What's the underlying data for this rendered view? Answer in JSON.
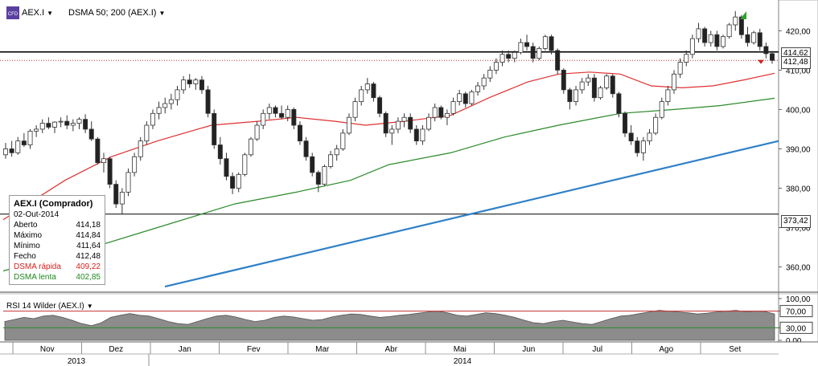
{
  "toolbar": {
    "symbol": "AEX.I",
    "indicator": "DSMA 50; 200 (AEX.I)"
  },
  "rsi_header": "RSI 14 Wilder (AEX.I)",
  "price_box": {
    "title": "AEX.I (Comprador)",
    "date": "02-Out-2014",
    "rows": [
      {
        "label": "Aberto",
        "value": "414,18"
      },
      {
        "label": "Máximo",
        "value": "414,84"
      },
      {
        "label": "Mínimo",
        "value": "411,64"
      },
      {
        "label": "Fecho",
        "value": "412,48"
      },
      {
        "label": "DSMA rápida",
        "value": "409,22"
      },
      {
        "label": "DSMA lenta",
        "value": "402,85"
      }
    ]
  },
  "price_tags": {
    "upper": "414,62",
    "last": "412,48",
    "support": "373,42"
  },
  "colors": {
    "fast_ma": "#e03030",
    "slow_ma": "#2a8a2a",
    "trendline": "#2f80c8",
    "rsi_fill": "#8c8c8c",
    "rsi_upper": "#c83030",
    "rsi_lower": "#2a8a2a"
  },
  "chart_data": {
    "type": "candlestick",
    "ylim": [
      354,
      427
    ],
    "y_ticks": [
      "420,00",
      "410,00",
      "400,00",
      "390,00",
      "380,00",
      "370,00",
      "360,00"
    ],
    "rsi_ticks": [
      "100,00",
      "70,00",
      "30,00",
      "0,00"
    ],
    "x_labels": [
      "Nov",
      "Dez",
      "Jan",
      "Fev",
      "Mar",
      "Abr",
      "Mai",
      "Jun",
      "Jul",
      "Ago",
      "Set"
    ],
    "years": [
      "2013",
      "2014"
    ],
    "horizontal_lines": [
      414.62,
      373.42
    ],
    "dashed_level": 412.48,
    "trendline": {
      "start": 355.0,
      "end": 392.0
    },
    "candles": [
      {
        "o": 388.5,
        "h": 391.5,
        "l": 387.5,
        "c": 390
      },
      {
        "o": 390,
        "h": 392,
        "l": 388,
        "c": 389
      },
      {
        "o": 389,
        "h": 393,
        "l": 388.5,
        "c": 392
      },
      {
        "o": 392,
        "h": 394,
        "l": 390.5,
        "c": 391
      },
      {
        "o": 391,
        "h": 395,
        "l": 390,
        "c": 394.5
      },
      {
        "o": 394.5,
        "h": 396,
        "l": 393,
        "c": 395
      },
      {
        "o": 395,
        "h": 397.5,
        "l": 394,
        "c": 396.5
      },
      {
        "o": 396.5,
        "h": 398,
        "l": 395,
        "c": 395.5
      },
      {
        "o": 395.5,
        "h": 397,
        "l": 394,
        "c": 396.8
      },
      {
        "o": 396.8,
        "h": 398,
        "l": 395.5,
        "c": 397
      },
      {
        "o": 397,
        "h": 398.5,
        "l": 395,
        "c": 396
      },
      {
        "o": 396,
        "h": 397.5,
        "l": 394.5,
        "c": 396.5
      },
      {
        "o": 396.5,
        "h": 398,
        "l": 395,
        "c": 397.5
      },
      {
        "o": 397.5,
        "h": 398.8,
        "l": 394,
        "c": 395
      },
      {
        "o": 395,
        "h": 397,
        "l": 392,
        "c": 392.5
      },
      {
        "o": 392.5,
        "h": 393,
        "l": 386,
        "c": 386.5
      },
      {
        "o": 386.5,
        "h": 389,
        "l": 384,
        "c": 387.5
      },
      {
        "o": 387.5,
        "h": 388,
        "l": 380,
        "c": 381
      },
      {
        "o": 381,
        "h": 382,
        "l": 375,
        "c": 376
      },
      {
        "o": 376,
        "h": 380,
        "l": 373.5,
        "c": 379
      },
      {
        "o": 379,
        "h": 385,
        "l": 378,
        "c": 384
      },
      {
        "o": 384,
        "h": 389,
        "l": 383,
        "c": 388
      },
      {
        "o": 388,
        "h": 393,
        "l": 387,
        "c": 392
      },
      {
        "o": 392,
        "h": 397,
        "l": 391,
        "c": 396
      },
      {
        "o": 396,
        "h": 400,
        "l": 395,
        "c": 399
      },
      {
        "o": 399,
        "h": 402,
        "l": 397.5,
        "c": 400.5
      },
      {
        "o": 400.5,
        "h": 403,
        "l": 399,
        "c": 401.5
      },
      {
        "o": 401.5,
        "h": 404,
        "l": 400,
        "c": 402.5
      },
      {
        "o": 402.5,
        "h": 406,
        "l": 401,
        "c": 405
      },
      {
        "o": 405,
        "h": 408.5,
        "l": 404,
        "c": 407.5
      },
      {
        "o": 407.5,
        "h": 409,
        "l": 405.5,
        "c": 406.5
      },
      {
        "o": 406.5,
        "h": 408,
        "l": 405,
        "c": 407.5
      },
      {
        "o": 407.5,
        "h": 408.5,
        "l": 404,
        "c": 405
      },
      {
        "o": 405,
        "h": 406,
        "l": 398,
        "c": 399
      },
      {
        "o": 399,
        "h": 400,
        "l": 390,
        "c": 391
      },
      {
        "o": 391,
        "h": 393,
        "l": 386,
        "c": 387.5
      },
      {
        "o": 387.5,
        "h": 389,
        "l": 382,
        "c": 383
      },
      {
        "o": 383,
        "h": 384,
        "l": 378.5,
        "c": 380
      },
      {
        "o": 380,
        "h": 384,
        "l": 379,
        "c": 383.5
      },
      {
        "o": 383.5,
        "h": 389,
        "l": 383,
        "c": 388.5
      },
      {
        "o": 388.5,
        "h": 393,
        "l": 388,
        "c": 392.5
      },
      {
        "o": 392.5,
        "h": 397,
        "l": 392,
        "c": 396
      },
      {
        "o": 396,
        "h": 400,
        "l": 395,
        "c": 399
      },
      {
        "o": 399,
        "h": 401.5,
        "l": 397.5,
        "c": 400.5
      },
      {
        "o": 400.5,
        "h": 401,
        "l": 398,
        "c": 399
      },
      {
        "o": 399,
        "h": 401,
        "l": 397.5,
        "c": 398
      },
      {
        "o": 398,
        "h": 401,
        "l": 397,
        "c": 400
      },
      {
        "o": 400,
        "h": 400.5,
        "l": 395,
        "c": 396
      },
      {
        "o": 396,
        "h": 397,
        "l": 391,
        "c": 392
      },
      {
        "o": 392,
        "h": 393,
        "l": 387,
        "c": 388
      },
      {
        "o": 388,
        "h": 389,
        "l": 383,
        "c": 384
      },
      {
        "o": 384,
        "h": 384.5,
        "l": 379,
        "c": 381
      },
      {
        "o": 381,
        "h": 386,
        "l": 380.5,
        "c": 385.5
      },
      {
        "o": 385.5,
        "h": 389.5,
        "l": 385,
        "c": 388.5
      },
      {
        "o": 388.5,
        "h": 391,
        "l": 387,
        "c": 390
      },
      {
        "o": 390,
        "h": 395,
        "l": 389.5,
        "c": 394
      },
      {
        "o": 394,
        "h": 399,
        "l": 393.5,
        "c": 398
      },
      {
        "o": 398,
        "h": 403,
        "l": 397,
        "c": 402
      },
      {
        "o": 402,
        "h": 406,
        "l": 401,
        "c": 405
      },
      {
        "o": 405,
        "h": 408,
        "l": 404,
        "c": 406.5
      },
      {
        "o": 406.5,
        "h": 407,
        "l": 402,
        "c": 403
      },
      {
        "o": 403,
        "h": 403.5,
        "l": 398,
        "c": 399
      },
      {
        "o": 399,
        "h": 399.5,
        "l": 393,
        "c": 394
      },
      {
        "o": 394,
        "h": 396,
        "l": 391,
        "c": 395
      },
      {
        "o": 395,
        "h": 398,
        "l": 394,
        "c": 397
      },
      {
        "o": 397,
        "h": 399,
        "l": 395.5,
        "c": 398
      },
      {
        "o": 398,
        "h": 399,
        "l": 394,
        "c": 395
      },
      {
        "o": 395,
        "h": 396,
        "l": 391,
        "c": 392
      },
      {
        "o": 392,
        "h": 396,
        "l": 391,
        "c": 395
      },
      {
        "o": 395,
        "h": 399,
        "l": 394.5,
        "c": 398
      },
      {
        "o": 398,
        "h": 401.5,
        "l": 397,
        "c": 400.5
      },
      {
        "o": 400.5,
        "h": 401,
        "l": 397.5,
        "c": 398
      },
      {
        "o": 398,
        "h": 400,
        "l": 396,
        "c": 399
      },
      {
        "o": 399,
        "h": 403,
        "l": 398.5,
        "c": 402
      },
      {
        "o": 402,
        "h": 405,
        "l": 401,
        "c": 404
      },
      {
        "o": 404,
        "h": 404.5,
        "l": 400.5,
        "c": 401.5
      },
      {
        "o": 401.5,
        "h": 405,
        "l": 401,
        "c": 404.5
      },
      {
        "o": 404.5,
        "h": 407,
        "l": 403.5,
        "c": 406
      },
      {
        "o": 406,
        "h": 409,
        "l": 405,
        "c": 408
      },
      {
        "o": 408,
        "h": 411,
        "l": 407,
        "c": 410
      },
      {
        "o": 410,
        "h": 413,
        "l": 409,
        "c": 412
      },
      {
        "o": 412,
        "h": 415,
        "l": 411,
        "c": 414
      },
      {
        "o": 414,
        "h": 415,
        "l": 412,
        "c": 413
      },
      {
        "o": 413,
        "h": 415,
        "l": 412,
        "c": 414.5
      },
      {
        "o": 414.5,
        "h": 418,
        "l": 414,
        "c": 417
      },
      {
        "o": 417,
        "h": 419,
        "l": 415,
        "c": 416
      },
      {
        "o": 416,
        "h": 417,
        "l": 412,
        "c": 413
      },
      {
        "o": 413,
        "h": 416,
        "l": 412.5,
        "c": 415.5
      },
      {
        "o": 415.5,
        "h": 419,
        "l": 415,
        "c": 418.5
      },
      {
        "o": 418.5,
        "h": 419,
        "l": 414,
        "c": 415
      },
      {
        "o": 415,
        "h": 415.5,
        "l": 409,
        "c": 410
      },
      {
        "o": 410,
        "h": 410.5,
        "l": 404,
        "c": 405
      },
      {
        "o": 405,
        "h": 405.5,
        "l": 400,
        "c": 402
      },
      {
        "o": 402,
        "h": 406,
        "l": 401,
        "c": 405
      },
      {
        "o": 405,
        "h": 408,
        "l": 404,
        "c": 407
      },
      {
        "o": 407,
        "h": 409,
        "l": 406,
        "c": 408
      },
      {
        "o": 408,
        "h": 409,
        "l": 402,
        "c": 403
      },
      {
        "o": 403,
        "h": 406,
        "l": 402.5,
        "c": 405.5
      },
      {
        "o": 405.5,
        "h": 409,
        "l": 405,
        "c": 408.5
      },
      {
        "o": 408.5,
        "h": 409,
        "l": 403,
        "c": 404
      },
      {
        "o": 404,
        "h": 404.5,
        "l": 398,
        "c": 399
      },
      {
        "o": 399,
        "h": 399.5,
        "l": 393,
        "c": 394
      },
      {
        "o": 394,
        "h": 396,
        "l": 391,
        "c": 392
      },
      {
        "o": 392,
        "h": 393,
        "l": 388,
        "c": 389
      },
      {
        "o": 389,
        "h": 393,
        "l": 387,
        "c": 392
      },
      {
        "o": 392,
        "h": 395,
        "l": 391,
        "c": 394
      },
      {
        "o": 394,
        "h": 399,
        "l": 393.5,
        "c": 398
      },
      {
        "o": 398,
        "h": 403,
        "l": 397.5,
        "c": 402
      },
      {
        "o": 402,
        "h": 406,
        "l": 401,
        "c": 405
      },
      {
        "o": 405,
        "h": 410,
        "l": 404,
        "c": 409
      },
      {
        "o": 409,
        "h": 413,
        "l": 408,
        "c": 412
      },
      {
        "o": 412,
        "h": 415,
        "l": 411,
        "c": 414
      },
      {
        "o": 414,
        "h": 419,
        "l": 413,
        "c": 418
      },
      {
        "o": 418,
        "h": 422,
        "l": 417,
        "c": 420.5
      },
      {
        "o": 420.5,
        "h": 421,
        "l": 416,
        "c": 417
      },
      {
        "o": 417,
        "h": 420,
        "l": 416,
        "c": 419
      },
      {
        "o": 419,
        "h": 420,
        "l": 415,
        "c": 416
      },
      {
        "o": 416,
        "h": 419,
        "l": 415.5,
        "c": 418.5
      },
      {
        "o": 418.5,
        "h": 422,
        "l": 418,
        "c": 421.5
      },
      {
        "o": 421.5,
        "h": 425,
        "l": 420,
        "c": 423.5
      },
      {
        "o": 423.5,
        "h": 424,
        "l": 418,
        "c": 419
      },
      {
        "o": 419,
        "h": 421,
        "l": 416,
        "c": 417
      },
      {
        "o": 417,
        "h": 420,
        "l": 416.5,
        "c": 419.5
      },
      {
        "o": 419.5,
        "h": 420.5,
        "l": 415,
        "c": 416
      },
      {
        "o": 416,
        "h": 417,
        "l": 413,
        "c": 414.18
      },
      {
        "o": 414.18,
        "h": 414.84,
        "l": 411.64,
        "c": 412.48
      }
    ],
    "fast_ma": [
      {
        "t": 0,
        "v": 372
      },
      {
        "t": 0.08,
        "v": 382
      },
      {
        "t": 0.14,
        "v": 388
      },
      {
        "t": 0.2,
        "v": 392
      },
      {
        "t": 0.27,
        "v": 396
      },
      {
        "t": 0.33,
        "v": 397
      },
      {
        "t": 0.38,
        "v": 398
      },
      {
        "t": 0.43,
        "v": 397
      },
      {
        "t": 0.47,
        "v": 396
      },
      {
        "t": 0.52,
        "v": 397
      },
      {
        "t": 0.58,
        "v": 398.5
      },
      {
        "t": 0.63,
        "v": 403
      },
      {
        "t": 0.68,
        "v": 407
      },
      {
        "t": 0.72,
        "v": 409
      },
      {
        "t": 0.76,
        "v": 409.5
      },
      {
        "t": 0.8,
        "v": 409
      },
      {
        "t": 0.84,
        "v": 406
      },
      {
        "t": 0.88,
        "v": 405.5
      },
      {
        "t": 0.92,
        "v": 406
      },
      {
        "t": 0.96,
        "v": 407.5
      },
      {
        "t": 1.0,
        "v": 409.2
      }
    ],
    "slow_ma": [
      {
        "t": 0,
        "v": 359
      },
      {
        "t": 0.1,
        "v": 364
      },
      {
        "t": 0.2,
        "v": 370
      },
      {
        "t": 0.3,
        "v": 376
      },
      {
        "t": 0.38,
        "v": 379
      },
      {
        "t": 0.45,
        "v": 382
      },
      {
        "t": 0.5,
        "v": 386
      },
      {
        "t": 0.58,
        "v": 389
      },
      {
        "t": 0.65,
        "v": 393
      },
      {
        "t": 0.72,
        "v": 396
      },
      {
        "t": 0.8,
        "v": 399
      },
      {
        "t": 0.87,
        "v": 400
      },
      {
        "t": 0.93,
        "v": 401
      },
      {
        "t": 1.0,
        "v": 402.85
      }
    ],
    "rsi": [
      45,
      50,
      55,
      52,
      58,
      60,
      55,
      48,
      40,
      35,
      42,
      55,
      60,
      64,
      60,
      58,
      52,
      45,
      40,
      38,
      45,
      52,
      58,
      60,
      56,
      50,
      45,
      48,
      55,
      58,
      56,
      52,
      48,
      50,
      56,
      60,
      63,
      62,
      58,
      55,
      57,
      60,
      62,
      65,
      68,
      70,
      66,
      60,
      58,
      62,
      66,
      64,
      60,
      55,
      48,
      42,
      40,
      45,
      48,
      44,
      40,
      38,
      45,
      52,
      58,
      60,
      64,
      68,
      72,
      70,
      68,
      66,
      63,
      65,
      68,
      70,
      72,
      68,
      70,
      69,
      63
    ]
  }
}
